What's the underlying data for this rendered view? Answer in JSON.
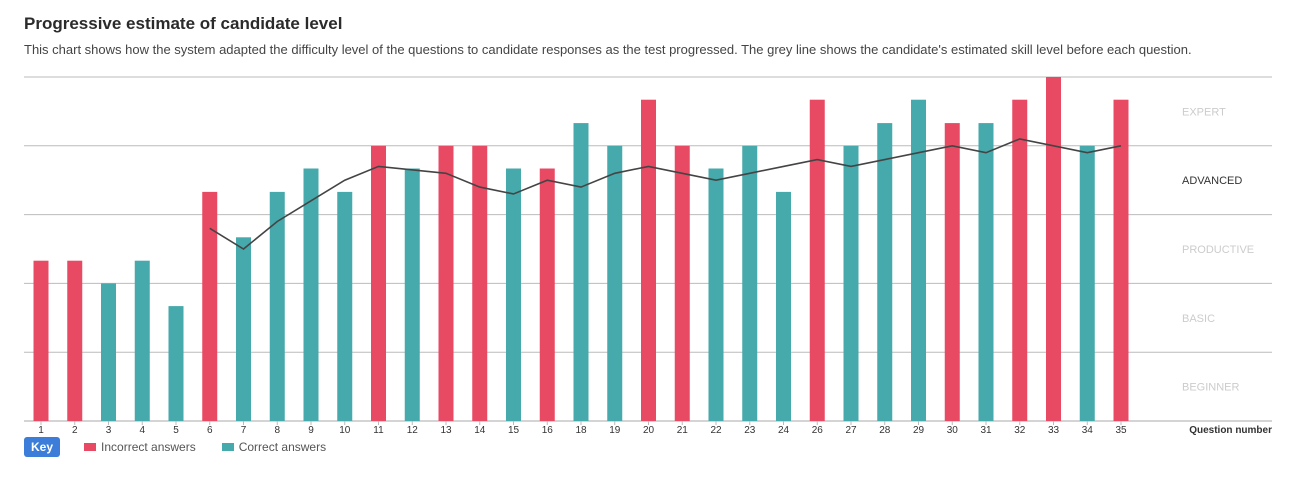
{
  "header": {
    "title": "Progressive estimate of candidate level",
    "description": "This chart shows how the system adapted the difficulty level of the questions to candidate responses as the test progressed. The grey line shows the candidate's estimated skill level before each question."
  },
  "key": {
    "label": "Key",
    "incorrect_label": "Incorrect answers",
    "correct_label": "Correct answers"
  },
  "colors": {
    "incorrect": "#e84a64",
    "correct": "#46a9ab",
    "estimate_line": "#444444",
    "grid": "#bbbbbb",
    "level_label_inactive": "#cccccc",
    "level_label_active": "#333333"
  },
  "chart_data": {
    "type": "bar",
    "title": "Progressive estimate of candidate level",
    "xlabel": "Question number",
    "ylabel": "",
    "ylim": [
      0,
      5
    ],
    "grid": true,
    "levels": [
      "BEGINNER",
      "BASIC",
      "PRODUCTIVE",
      "ADVANCED",
      "EXPERT"
    ],
    "active_level": "ADVANCED",
    "categories": [
      "1",
      "2",
      "3",
      "4",
      "5",
      "6",
      "7",
      "8",
      "9",
      "10",
      "11",
      "12",
      "13",
      "14",
      "15",
      "16",
      "18",
      "19",
      "20",
      "21",
      "22",
      "23",
      "24",
      "26",
      "27",
      "28",
      "29",
      "30",
      "31",
      "32",
      "33",
      "34",
      "35"
    ],
    "values": [
      2.33,
      2.33,
      2.0,
      2.33,
      1.67,
      3.33,
      2.67,
      3.33,
      3.67,
      3.33,
      4.0,
      3.67,
      4.0,
      4.0,
      3.67,
      3.67,
      4.33,
      4.0,
      4.67,
      4.0,
      3.67,
      4.0,
      3.33,
      4.67,
      4.0,
      4.33,
      4.67,
      4.33,
      4.33,
      4.67,
      5.0,
      4.0,
      4.67
    ],
    "results": [
      "incorrect",
      "incorrect",
      "correct",
      "correct",
      "correct",
      "incorrect",
      "correct",
      "correct",
      "correct",
      "correct",
      "incorrect",
      "correct",
      "incorrect",
      "incorrect",
      "correct",
      "incorrect",
      "correct",
      "correct",
      "incorrect",
      "incorrect",
      "correct",
      "correct",
      "correct",
      "incorrect",
      "correct",
      "correct",
      "correct",
      "incorrect",
      "correct",
      "incorrect",
      "incorrect",
      "correct",
      "incorrect"
    ],
    "series": [
      {
        "name": "Incorrect answers"
      },
      {
        "name": "Correct answers"
      },
      {
        "x": [
          "6",
          "7",
          "8",
          "9",
          "10",
          "11",
          "13",
          "14",
          "15",
          "16",
          "18",
          "19",
          "20",
          "21",
          "22",
          "23",
          "24",
          "26",
          "27",
          "28",
          "29",
          "30",
          "31",
          "32",
          "33",
          "34",
          "35"
        ],
        "values": [
          2.8,
          2.5,
          2.9,
          3.2,
          3.5,
          3.7,
          3.6,
          3.4,
          3.3,
          3.5,
          3.4,
          3.6,
          3.7,
          3.6,
          3.5,
          3.6,
          3.7,
          3.8,
          3.7,
          3.8,
          3.9,
          4.0,
          3.9,
          4.1,
          4.0,
          3.9,
          4.0
        ]
      }
    ]
  }
}
